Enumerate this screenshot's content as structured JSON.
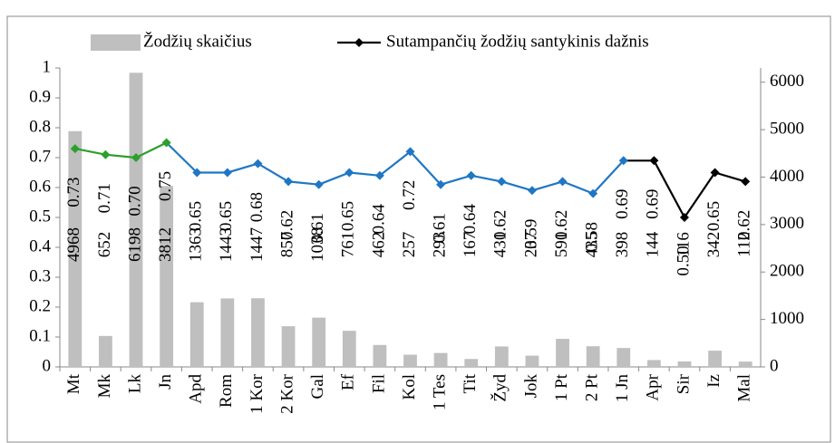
{
  "chart_data": {
    "type": "bar-line",
    "categories": [
      "Mt",
      "Mk",
      "Lk",
      "Jn",
      "Apd",
      "Rom",
      "1 Kor",
      "2 Kor",
      "Gal",
      "Ef",
      "Fil",
      "Kol",
      "1 Tes",
      "Tit",
      "Žyd",
      "Jok",
      "1 Pt",
      "2 Pt",
      "1 Jn",
      "Apr",
      "Sir",
      "Iz",
      "Mal"
    ],
    "series": [
      {
        "name": "Žodžių skaičius",
        "type": "bar",
        "axis": "y2",
        "color": "#bfbfbf",
        "values": [
          4968,
          652,
          6198,
          3812,
          1363,
          1443,
          1447,
          857,
          1038,
          761,
          462,
          257,
          293,
          167,
          431,
          237,
          591,
          435,
          398,
          144,
          116,
          342,
          112
        ]
      },
      {
        "name": "Sutampančių žodžių santykinis dažnis",
        "type": "line",
        "axis": "y",
        "color": "#000000",
        "point_colors": [
          "#2ca02c",
          "#2ca02c",
          "#2ca02c",
          "#2ca02c",
          "#1f77c4",
          "#1f77c4",
          "#1f77c4",
          "#1f77c4",
          "#1f77c4",
          "#1f77c4",
          "#1f77c4",
          "#1f77c4",
          "#1f77c4",
          "#1f77c4",
          "#1f77c4",
          "#1f77c4",
          "#1f77c4",
          "#1f77c4",
          "#1f77c4",
          "#000000",
          "#000000",
          "#000000",
          "#000000"
        ],
        "values": [
          0.73,
          0.71,
          0.7,
          0.75,
          0.65,
          0.65,
          0.68,
          0.62,
          0.61,
          0.65,
          0.64,
          0.72,
          0.61,
          0.64,
          0.62,
          0.59,
          0.62,
          0.58,
          0.69,
          0.69,
          0.5,
          0.65,
          0.62
        ],
        "value_labels": [
          "0.73",
          "0.71",
          "0.70",
          "0.75",
          "0.65",
          "0.65",
          "0.68",
          "0.62",
          "0.61",
          "0.65",
          "0.64",
          "0.72",
          "0.61",
          "0.64",
          "0.62",
          "0.59",
          "0.62",
          "0.58",
          "0.69",
          "0.69",
          "0.50",
          "0.65",
          "0.62"
        ]
      }
    ],
    "ylim": [
      0,
      1
    ],
    "yticks": [
      0,
      0.1,
      0.2,
      0.3,
      0.4,
      0.5,
      0.6,
      0.7,
      0.8,
      0.9,
      1
    ],
    "y2lim": [
      0,
      6300
    ],
    "y2ticks": [
      0,
      1000,
      2000,
      3000,
      4000,
      5000,
      6000
    ]
  }
}
